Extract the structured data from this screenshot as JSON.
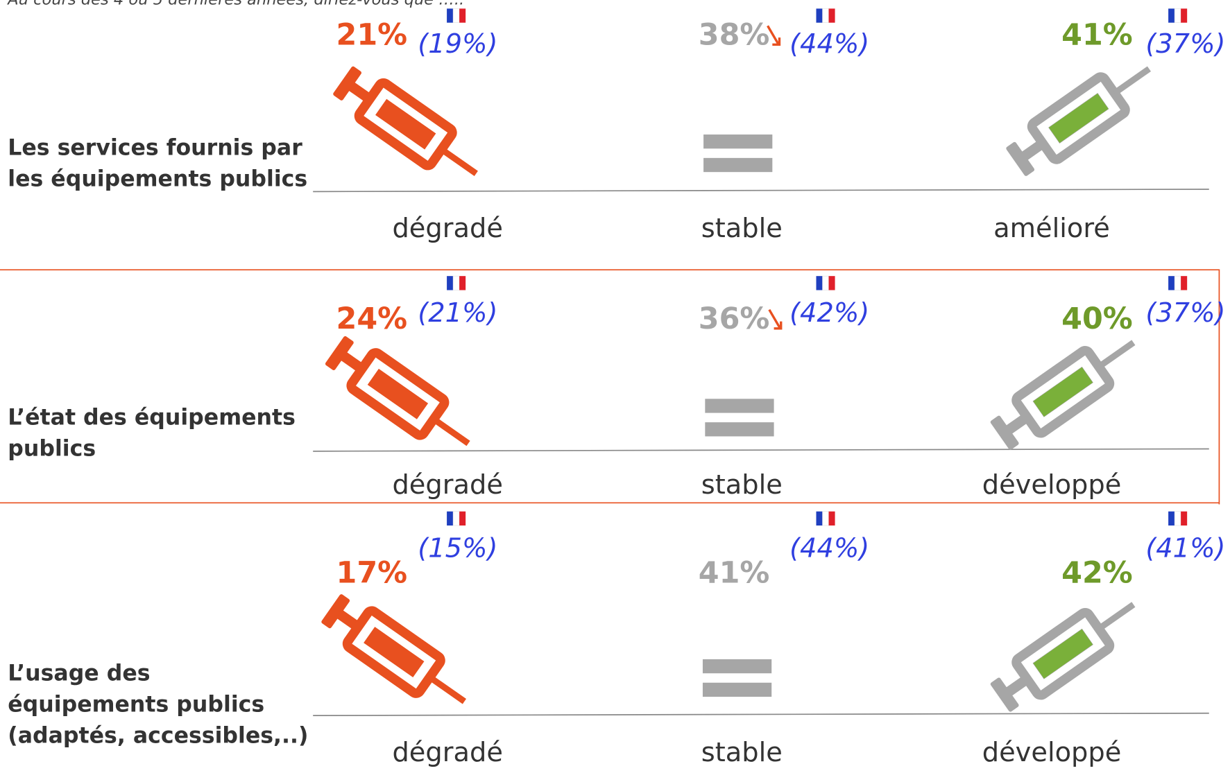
{
  "question": "Au cours des 4 ou 5 dernières années, diriez-vous que …..",
  "rows": [
    {
      "label": [
        "Les services fournis par",
        "les équipements publics"
      ],
      "items": [
        {
          "value": "21%",
          "national": "(19%)",
          "label": "dégradé"
        },
        {
          "value": "38%",
          "national": "(44%)",
          "label": "stable"
        },
        {
          "value": "41%",
          "national": "(37%)",
          "label": "amélioré"
        }
      ]
    },
    {
      "label": [
        "L’état des équipements",
        "publics"
      ],
      "items": [
        {
          "value": "24%",
          "national": "(21%)",
          "label": "dégradé"
        },
        {
          "value": "36%",
          "national": "(42%)",
          "label": "stable"
        },
        {
          "value": "40%",
          "national": "(37%)",
          "label": "développé"
        }
      ]
    },
    {
      "label": [
        "L’usage des",
        "équipements publics",
        "(adaptés, accessibles,..)"
      ],
      "items": [
        {
          "value": "17%",
          "national": "(15%)",
          "label": "dégradé"
        },
        {
          "value": "41%",
          "national": "(44%)",
          "label": "stable"
        },
        {
          "value": "42%",
          "national": "(41%)",
          "label": "développé"
        }
      ]
    }
  ]
}
